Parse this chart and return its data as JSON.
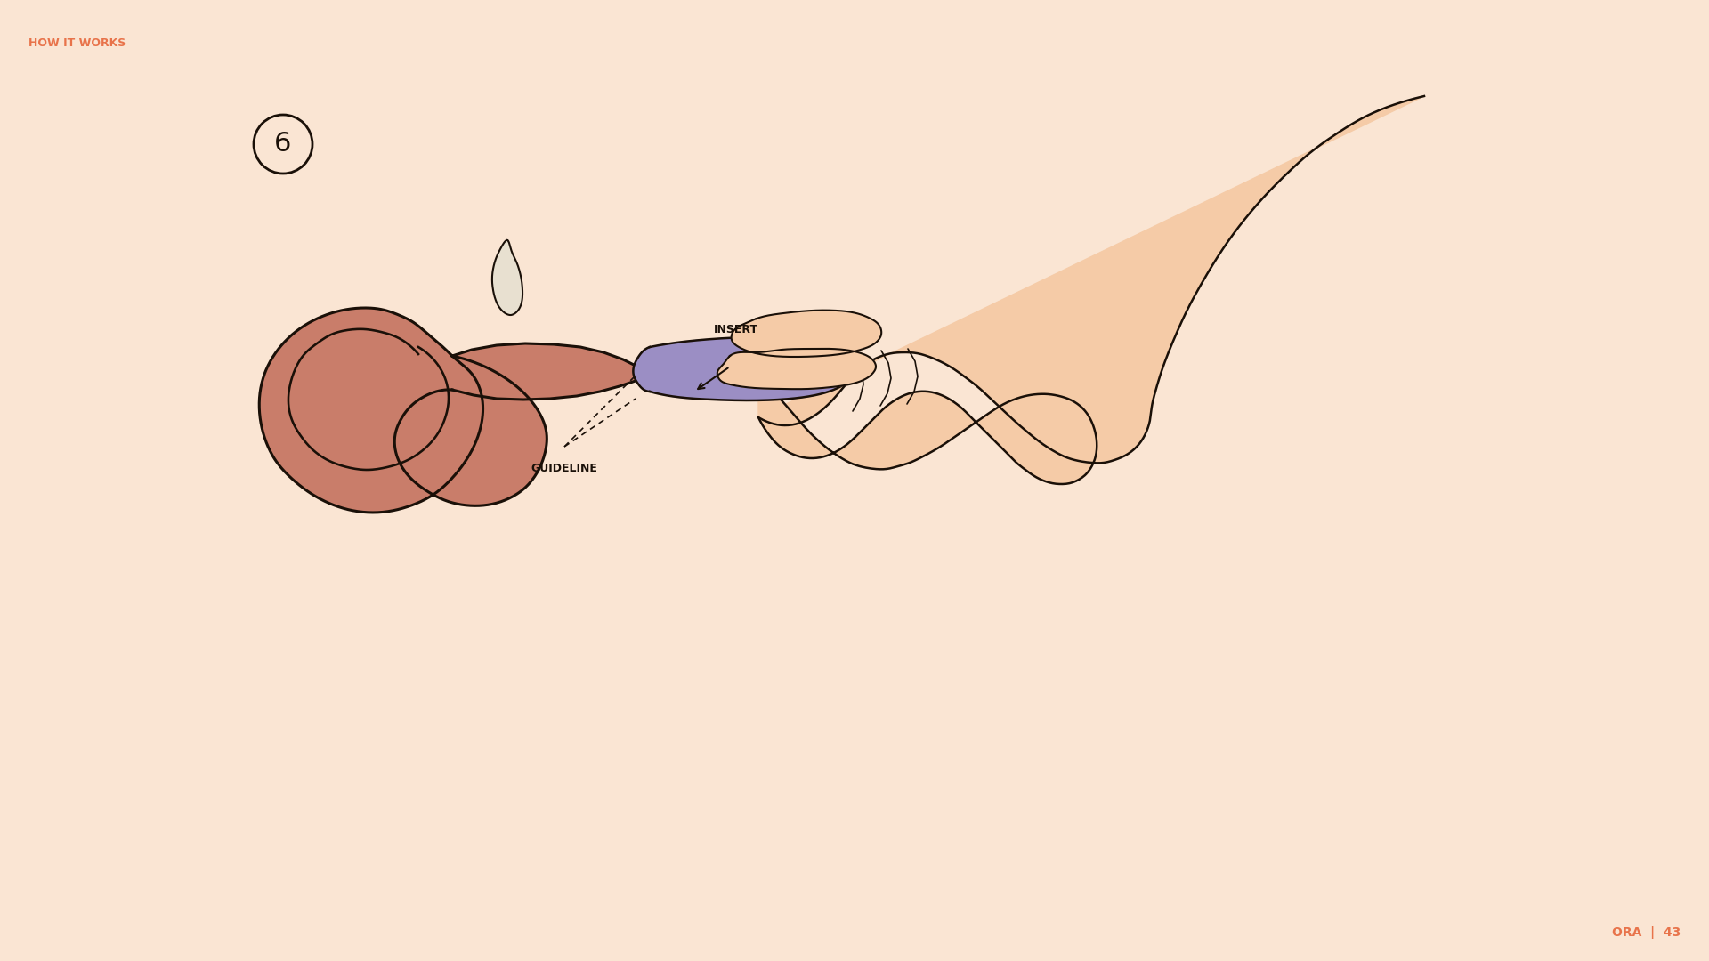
{
  "background_color": "#FAE5D3",
  "title_text": "HOW IT WORKS",
  "title_color": "#E8734A",
  "title_fontsize": 9,
  "page_text": "ORA  |  43",
  "page_color": "#E8734A",
  "page_fontsize": 10,
  "step_number": "6",
  "step_circle_color": "#FAE5D3",
  "step_circle_edge": "#1a1008",
  "ear_fill": "#C97D6A",
  "ear_line": "#1a1008",
  "hand_fill": "#F5CBA7",
  "hand_line": "#1a1008",
  "insert_color": "#9B8EC4",
  "label_color": "#1a1008",
  "label_fontsize": 9,
  "insert_label": "INSERT",
  "guideline_label": "GUIDELINE",
  "dashed_line_color": "#1a1008"
}
